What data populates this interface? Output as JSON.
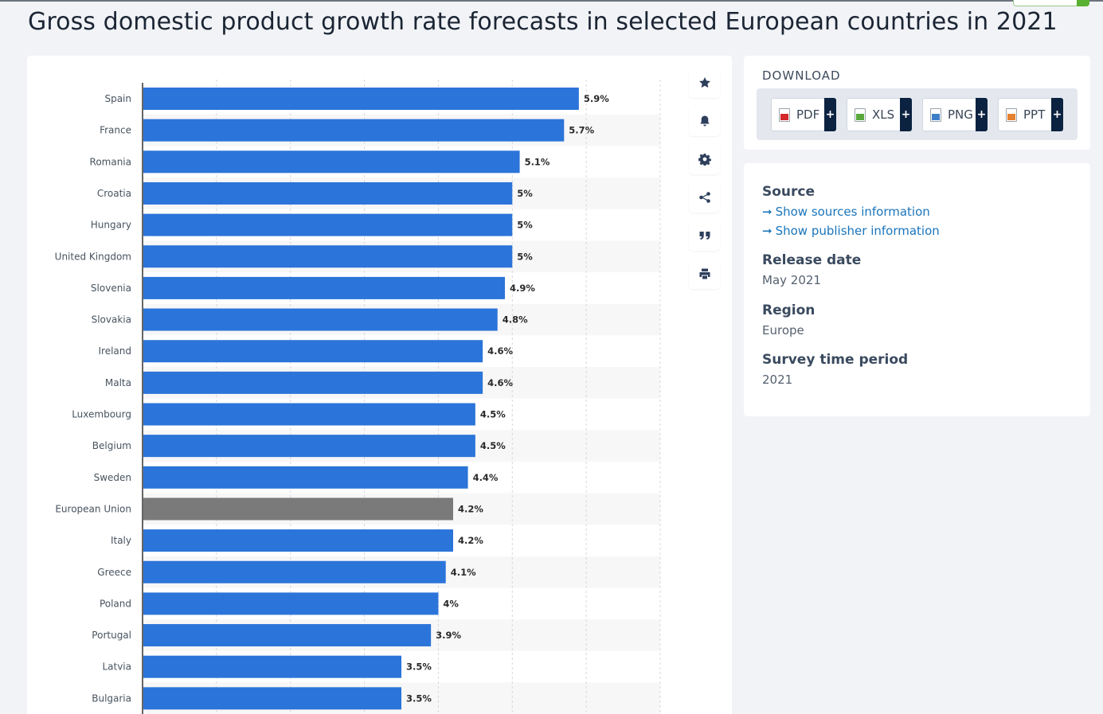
{
  "page": {
    "title": "Gross domestic product growth rate forecasts in selected European countries in 2021"
  },
  "colors": {
    "bar": "#2b74d9",
    "highlight": "#7a7a7a",
    "label": "#47535f",
    "value": "#2a2a2a",
    "link": "#1b75bb"
  },
  "toolbar": {
    "icons": [
      "star-icon",
      "bell-icon",
      "gear-icon",
      "share-icon",
      "quote-icon",
      "print-icon"
    ]
  },
  "download": {
    "title": "DOWNLOAD",
    "buttons": [
      {
        "label": "PDF",
        "plus": "+",
        "icon": "pdf-file-icon"
      },
      {
        "label": "XLS",
        "plus": "+",
        "icon": "xls-file-icon"
      },
      {
        "label": "PNG",
        "plus": "+",
        "icon": "png-file-icon"
      },
      {
        "label": "PPT",
        "plus": "+",
        "icon": "ppt-file-icon"
      }
    ]
  },
  "info": {
    "source_heading": "Source",
    "sources_link": "Show sources information",
    "publisher_link": "Show publisher information",
    "link_arrow": "➞",
    "release_heading": "Release date",
    "release_value": "May 2021",
    "region_heading": "Region",
    "region_value": "Europe",
    "survey_heading": "Survey time period",
    "survey_value": "2021"
  },
  "chart_data": {
    "type": "bar",
    "orientation": "horizontal",
    "title": "Gross domestic product growth rate forecasts in selected European countries in 2021",
    "xlabel": "",
    "ylabel": "",
    "xlim": [
      0,
      7
    ],
    "grid": true,
    "value_suffix": "%",
    "highlight_category": "European Union",
    "categories": [
      "Spain",
      "France",
      "Romania",
      "Croatia",
      "Hungary",
      "United Kingdom",
      "Slovenia",
      "Slovakia",
      "Ireland",
      "Malta",
      "Luxembourg",
      "Belgium",
      "Sweden",
      "European Union",
      "Italy",
      "Greece",
      "Poland",
      "Portugal",
      "Latvia",
      "Bulgaria"
    ],
    "values": [
      5.9,
      5.7,
      5.1,
      5,
      5,
      5,
      4.9,
      4.8,
      4.6,
      4.6,
      4.5,
      4.5,
      4.4,
      4.2,
      4.2,
      4.1,
      4,
      3.9,
      3.5,
      3.5
    ],
    "value_labels": [
      "5.9%",
      "5.7%",
      "5.1%",
      "5%",
      "5%",
      "5%",
      "4.9%",
      "4.8%",
      "4.6%",
      "4.6%",
      "4.5%",
      "4.5%",
      "4.4%",
      "4.2%",
      "4.2%",
      "4.1%",
      "4%",
      "3.9%",
      "3.5%",
      "3.5%"
    ]
  }
}
